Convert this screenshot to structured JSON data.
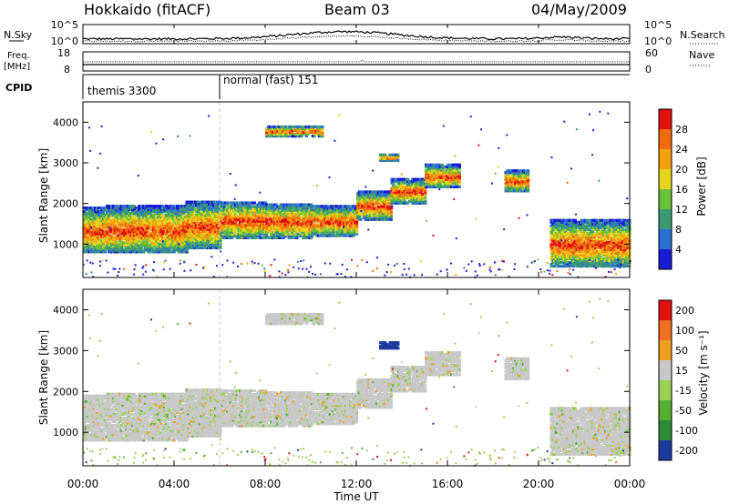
{
  "header": {
    "station": "Hokkaido (fitACF)",
    "beam": "Beam 03",
    "date": "04/May/2009"
  },
  "summary": {
    "nsky_label": "N.Sky",
    "nsky_ticks": [
      "10^5",
      "10^0"
    ],
    "nsearch_label": "N.Search",
    "nsearch_ticks": [
      "10^5",
      "10^0"
    ],
    "freq_label": "Freq.",
    "freq_unit": "[MHz]",
    "freq_ticks": [
      "18",
      "8"
    ],
    "nave_label": "Nave",
    "nave_ticks": [
      "60",
      "0"
    ],
    "cpid_label": "CPID",
    "cpid_segments": [
      {
        "name": "themis 3300",
        "start_h": 0
      },
      {
        "name": "normal (fast) 151",
        "start_h": 6
      }
    ]
  },
  "chart_data": [
    {
      "type": "heatmap",
      "title": "",
      "xlabel": "Time UT",
      "ylabel": "Slant Range [km]",
      "x_ticks": [
        "00:00",
        "04:00",
        "08:00",
        "12:00",
        "16:00",
        "20:00",
        "00:00"
      ],
      "xlim_hours": [
        0,
        24
      ],
      "ylim_km": [
        180,
        4500
      ],
      "y_ticks": [
        1000,
        2000,
        3000,
        4000
      ],
      "colorbar": {
        "label": "Power [dB]",
        "ticks": [
          4,
          8,
          12,
          16,
          20,
          24,
          28
        ],
        "colors": [
          "#1a1ad6",
          "#2a6fd0",
          "#3a9a72",
          "#69c23a",
          "#e6d41a",
          "#f5a00f",
          "#f06a0a",
          "#e01010"
        ]
      }
    },
    {
      "type": "heatmap",
      "title": "",
      "xlabel": "Time UT",
      "ylabel": "Slant Range [km]",
      "x_ticks": [
        "00:00",
        "04:00",
        "08:00",
        "12:00",
        "16:00",
        "20:00",
        "00:00"
      ],
      "xlim_hours": [
        0,
        24
      ],
      "ylim_km": [
        180,
        4500
      ],
      "y_ticks": [
        1000,
        2000,
        3000,
        4000
      ],
      "colorbar": {
        "label": "Velocity [m s⁻¹]",
        "ticks": [
          200,
          100,
          50,
          15,
          -15,
          -50,
          -100,
          -200
        ],
        "colors": [
          "#1e3aa0",
          "#2f8a3a",
          "#55b030",
          "#9ad055",
          "#c8c8c8",
          "#f0a020",
          "#f07020",
          "#e01010"
        ]
      }
    }
  ],
  "bands": [
    {
      "t0": 0.0,
      "t1": 1.0,
      "r0": 800,
      "r1": 1900
    },
    {
      "t0": 1.0,
      "t1": 4.5,
      "r0": 800,
      "r1": 1950
    },
    {
      "t0": 4.5,
      "t1": 6.0,
      "r0": 900,
      "r1": 2050
    },
    {
      "t0": 6.0,
      "t1": 8.0,
      "r0": 1150,
      "r1": 2050
    },
    {
      "t0": 8.0,
      "t1": 10.0,
      "r0": 1150,
      "r1": 2000
    },
    {
      "t0": 10.0,
      "t1": 12.0,
      "r0": 1200,
      "r1": 1950
    },
    {
      "t0": 12.0,
      "t1": 13.5,
      "r0": 1600,
      "r1": 2300
    },
    {
      "t0": 13.5,
      "t1": 15.0,
      "r0": 2000,
      "r1": 2600
    },
    {
      "t0": 15.0,
      "t1": 16.5,
      "r0": 2400,
      "r1": 2950
    },
    {
      "t0": 18.5,
      "t1": 19.5,
      "r0": 2300,
      "r1": 2800
    },
    {
      "t0": 20.5,
      "t1": 24.0,
      "r0": 450,
      "r1": 1600
    },
    {
      "t0": 8.0,
      "t1": 10.5,
      "r0": 3650,
      "r1": 3900
    },
    {
      "t0": 13.0,
      "t1": 13.8,
      "r0": 3050,
      "r1": 3200
    }
  ]
}
